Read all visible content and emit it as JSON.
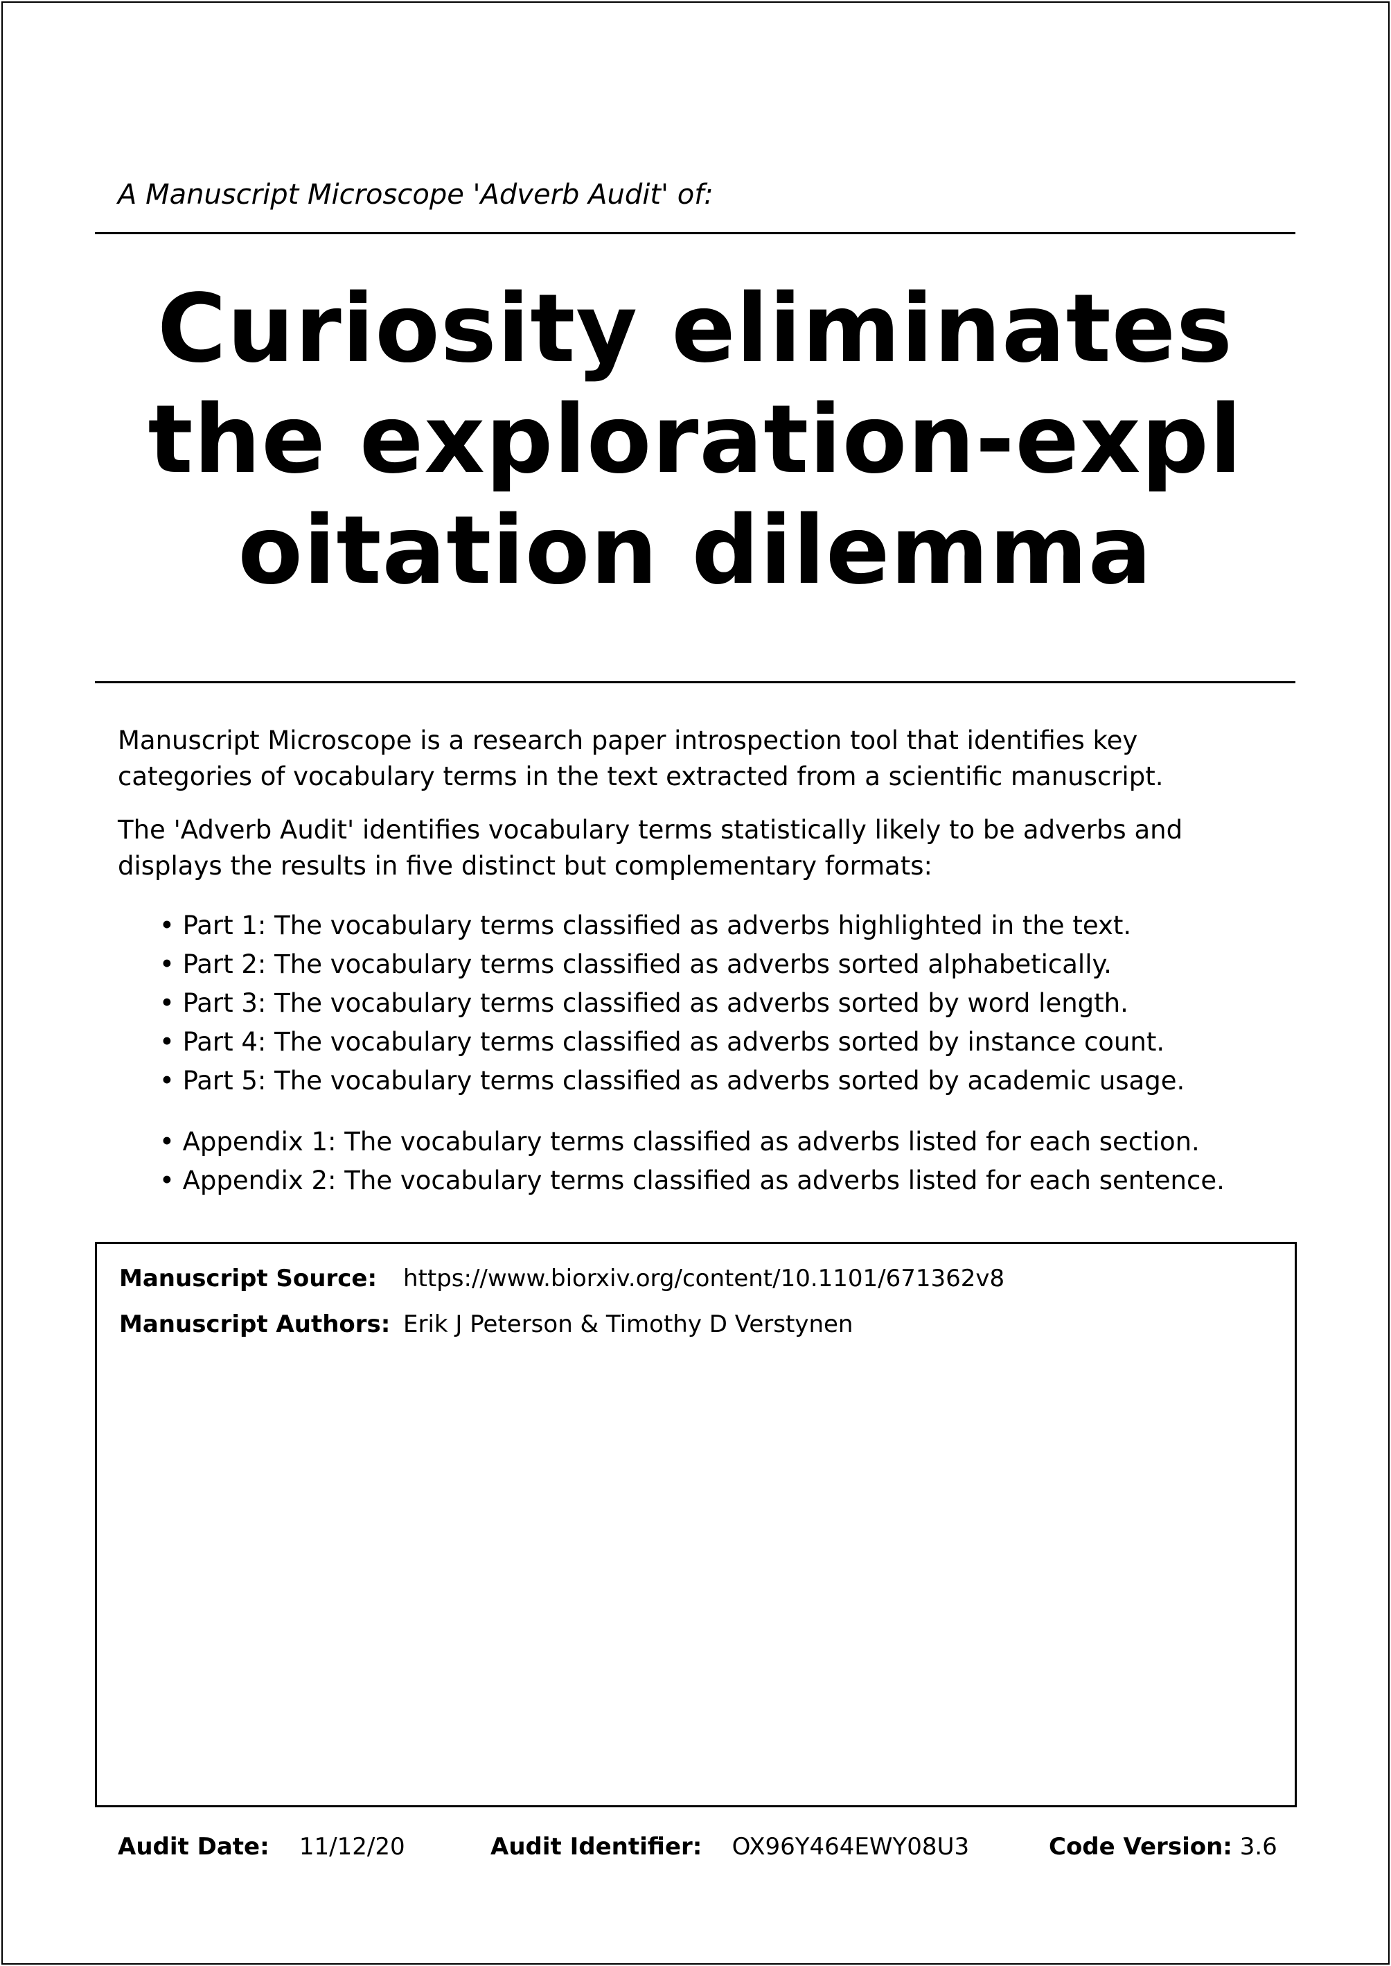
{
  "header": {
    "subtitle": "A Manuscript Microscope 'Adverb Audit' of:"
  },
  "title_lines": [
    "Curiosity eliminates",
    "the exploration-expl",
    "oitation dilemma"
  ],
  "intro": {
    "p1_line1": "Manuscript Microscope is a research paper introspection tool that identifies key",
    "p1_line2": "categories of vocabulary terms in the text extracted from a scientific manuscript.",
    "p2_line1": "The 'Adverb Audit' identifies vocabulary terms statistically likely to be adverbs and",
    "p2_line2": "displays the results in five distinct but complementary formats:"
  },
  "parts": [
    "• Part 1: The vocabulary terms classified as adverbs highlighted in the text.",
    "• Part 2: The vocabulary terms classified as adverbs sorted alphabetically.",
    "• Part 3: The vocabulary terms classified as adverbs sorted by word length.",
    "• Part 4: The vocabulary terms classified as adverbs sorted by instance count.",
    "• Part 5: The vocabulary terms classified as adverbs sorted by academic usage."
  ],
  "appendices": [
    "• Appendix 1: The vocabulary terms classified as adverbs listed for each section.",
    "• Appendix 2: The vocabulary terms classified as adverbs listed for each sentence."
  ],
  "manuscript": {
    "source_label": "Manuscript Source:",
    "source_value": "https://www.biorxiv.org/content/10.1101/671362v8",
    "authors_label": "Manuscript Authors:",
    "authors_value": "Erik J Peterson & Timothy D Verstynen"
  },
  "footer": {
    "date_label": "Audit Date:",
    "date_value": "11/12/20",
    "id_label": "Audit Identifier:",
    "id_value": "OX96Y464EWY08U3",
    "version_label": "Code Version:",
    "version_value": "3.6"
  }
}
